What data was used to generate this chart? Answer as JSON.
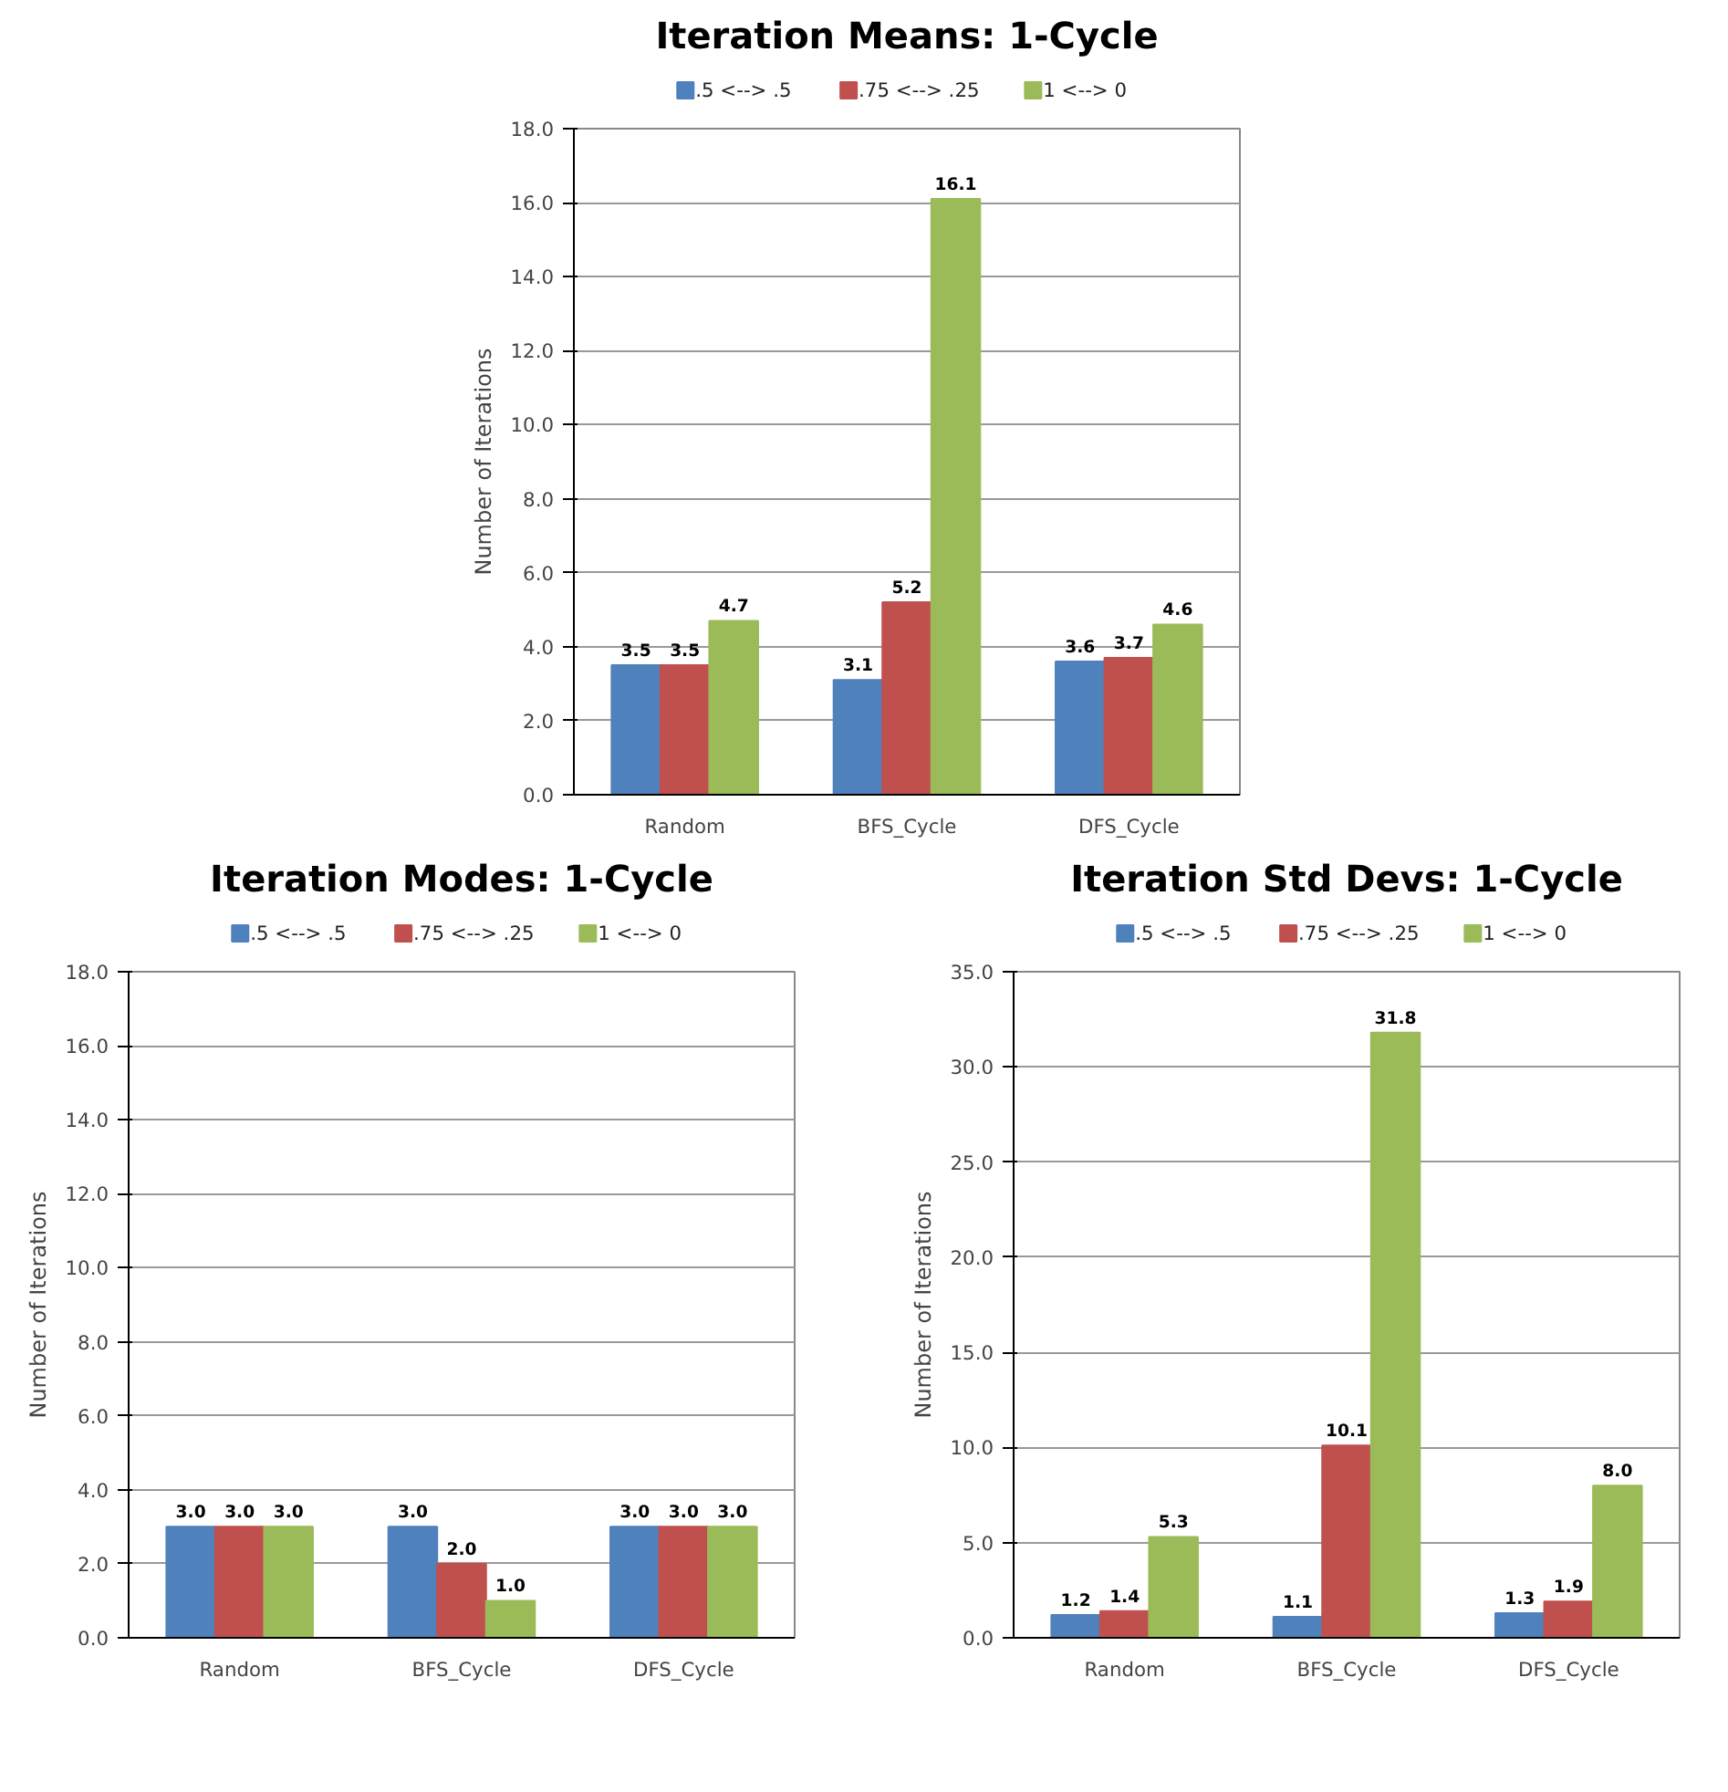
{
  "chart_data": [
    {
      "type": "bar",
      "title": "Iteration Means: 1-Cycle",
      "ylabel": "Number of Iterations",
      "categories": [
        "Random",
        "BFS_Cycle",
        "DFS_Cycle"
      ],
      "ylim": [
        0,
        18
      ],
      "yticks": [
        {
          "value": 0,
          "label": "0.0"
        },
        {
          "value": 2,
          "label": "2.0"
        },
        {
          "value": 4,
          "label": "4.0"
        },
        {
          "value": 6,
          "label": "6.0"
        },
        {
          "value": 8,
          "label": "8.0"
        },
        {
          "value": 10,
          "label": "10.0"
        },
        {
          "value": 12,
          "label": "12.0"
        },
        {
          "value": 14,
          "label": "14.0"
        },
        {
          "value": 16,
          "label": "16.0"
        },
        {
          "value": 18,
          "label": "18.0"
        }
      ],
      "grid": "y",
      "legend": "top",
      "data_labels": true,
      "series": [
        {
          "name": ".5 <--> .5",
          "color": "#4f81bd",
          "values": [
            3.5,
            3.1,
            3.6
          ]
        },
        {
          "name": ".75 <--> .25",
          "color": "#c0504d",
          "values": [
            3.5,
            5.2,
            3.7
          ]
        },
        {
          "name": "1 <--> 0",
          "color": "#9bbb59",
          "values": [
            4.7,
            16.1,
            4.6
          ]
        }
      ]
    },
    {
      "type": "bar",
      "title": "Iteration Modes: 1-Cycle",
      "ylabel": "Number of Iterations",
      "categories": [
        "Random",
        "BFS_Cycle",
        "DFS_Cycle"
      ],
      "ylim": [
        0,
        18
      ],
      "yticks": [
        {
          "value": 0,
          "label": "0.0"
        },
        {
          "value": 2,
          "label": "2.0"
        },
        {
          "value": 4,
          "label": "4.0"
        },
        {
          "value": 6,
          "label": "6.0"
        },
        {
          "value": 8,
          "label": "8.0"
        },
        {
          "value": 10,
          "label": "10.0"
        },
        {
          "value": 12,
          "label": "12.0"
        },
        {
          "value": 14,
          "label": "14.0"
        },
        {
          "value": 16,
          "label": "16.0"
        },
        {
          "value": 18,
          "label": "18.0"
        }
      ],
      "grid": "y",
      "legend": "top",
      "series": [
        {
          "name": ".5 <--> .5",
          "color": "#4f81bd",
          "values": [
            3,
            3,
            3
          ],
          "value_labels": [
            "3.0",
            "3.0",
            "3.0"
          ]
        },
        {
          "name": ".75 <--> .25",
          "color": "#c0504d",
          "values": [
            3,
            2,
            3
          ],
          "value_labels": [
            "3.0",
            "2.0",
            "3.0"
          ]
        },
        {
          "name": "1 <--> 0",
          "color": "#9bbb59",
          "values": [
            3,
            1,
            3
          ],
          "value_labels": [
            "3.0",
            "1.0",
            "3.0"
          ]
        }
      ]
    },
    {
      "type": "bar",
      "title": "Iteration Std Devs: 1-Cycle",
      "ylabel": "Number of Iterations",
      "categories": [
        "Random",
        "BFS_Cycle",
        "DFS_Cycle"
      ],
      "ylim": [
        0,
        35
      ],
      "yticks": [
        {
          "value": 0,
          "label": "0.0"
        },
        {
          "value": 5,
          "label": "5.0"
        },
        {
          "value": 10,
          "label": "10.0"
        },
        {
          "value": 15,
          "label": "15.0"
        },
        {
          "value": 20,
          "label": "20.0"
        },
        {
          "value": 25,
          "label": "25.0"
        },
        {
          "value": 30,
          "label": "30.0"
        },
        {
          "value": 35,
          "label": "35.0"
        }
      ],
      "grid": "y",
      "legend": "top",
      "data_labels": true,
      "series": [
        {
          "name": ".5 <--> .5",
          "color": "#4f81bd",
          "values": [
            1.2,
            1.1,
            1.3
          ]
        },
        {
          "name": ".75 <--> .25",
          "color": "#c0504d",
          "values": [
            1.4,
            10.1,
            1.9
          ]
        },
        {
          "name": "1 <--> 0",
          "color": "#9bbb59",
          "values": [
            5.3,
            31.8,
            8
          ],
          "value_labels": [
            "5.3",
            "31.8",
            "8.0"
          ]
        }
      ]
    }
  ]
}
